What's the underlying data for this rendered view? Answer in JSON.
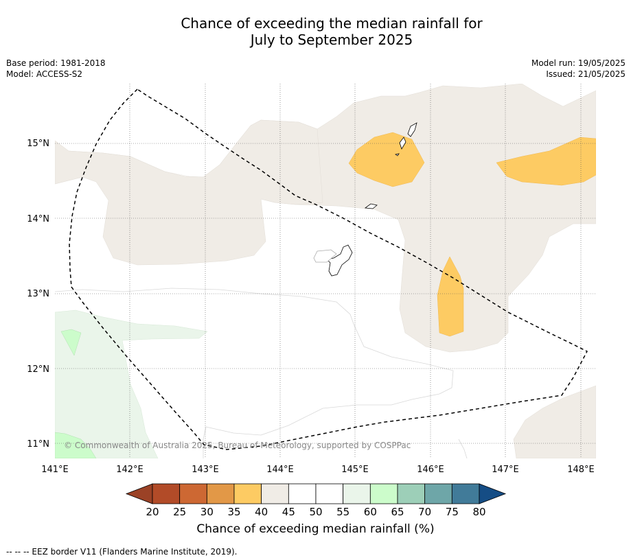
{
  "title": {
    "line1": "Chance of exceeding the median rainfall for",
    "line2": "July to September 2025"
  },
  "meta_left": {
    "base_period": "Base period: 1981-2018",
    "model": "Model: ACCESS-S2"
  },
  "meta_right": {
    "model_run": "Model run: 19/05/2025",
    "issued": "Issued: 21/05/2025"
  },
  "map": {
    "lon_ticks": [
      "141°E",
      "142°E",
      "143°E",
      "144°E",
      "145°E",
      "146°E",
      "147°E",
      "148°E"
    ],
    "lat_ticks": [
      "15°N",
      "14°N",
      "13°N",
      "12°N",
      "11°N"
    ],
    "lon_range": [
      141.0,
      148.2
    ],
    "lat_range": [
      10.8,
      15.75
    ],
    "copyright": "© Commonwealth of Australia 2025, Bureau of Meteorology, supported by COSPPac"
  },
  "colorbar": {
    "label": "Chance of exceeding median rainfall (%)",
    "ticks": [
      "20",
      "25",
      "30",
      "35",
      "40",
      "45",
      "50",
      "55",
      "60",
      "65",
      "70",
      "75",
      "80"
    ],
    "colors": [
      "#9b4226",
      "#b24b28",
      "#cd6833",
      "#e29847",
      "#fdcb63",
      "#f0ece6",
      "#ffffff",
      "#ffffff",
      "#eaf5ea",
      "#ccfccb",
      "#9dcfb8",
      "#6ea6a8",
      "#417b99",
      "#154d85"
    ]
  },
  "footnote": "--  --  -- EEZ border V11 (Flanders Marine Institute, 2019)."
}
